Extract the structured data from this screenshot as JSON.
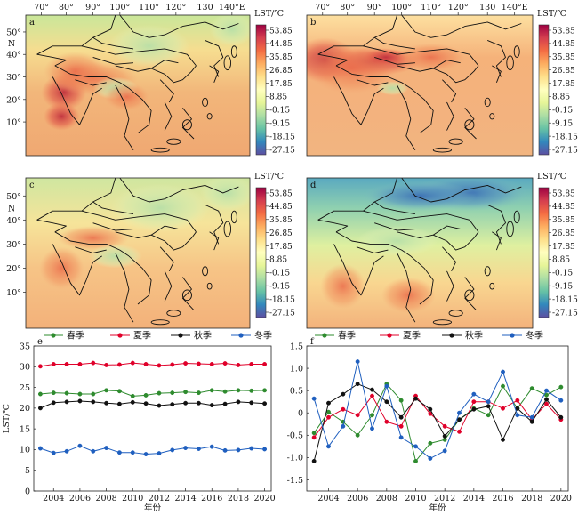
{
  "maps": {
    "top_lon_labels": [
      "70°",
      "80°",
      "90°",
      "100°",
      "110°",
      "120°",
      "130",
      "140°E"
    ],
    "lat_labels": [
      "50°",
      "40°",
      "30°",
      "20°",
      "10°"
    ],
    "lat_n_label": "N",
    "colorbar_title": "LST/℃",
    "colorbar_ticks": [
      "53.85",
      "44.85",
      "35.85",
      "26.85",
      "17.85",
      "8.85",
      "-0.15",
      "-9.15",
      "-18.15",
      "-27.15"
    ],
    "colorbar_colors": [
      "#9e0142",
      "#d53e4f",
      "#f46d43",
      "#fdae61",
      "#fee08b",
      "#ffffbf",
      "#e6f598",
      "#abdda4",
      "#66c2a5",
      "#3288bd",
      "#5e4fa2"
    ],
    "panels": [
      {
        "letter": "a",
        "season": "spring"
      },
      {
        "letter": "b",
        "season": "summer"
      },
      {
        "letter": "c",
        "season": "autumn"
      },
      {
        "letter": "d",
        "season": "winter"
      }
    ]
  },
  "chart_data": [
    {
      "type": "line",
      "panel_label": "e",
      "xlabel": "年份",
      "ylabel": "LST/℃",
      "xlim": [
        2002.5,
        2020.5
      ],
      "ylim": [
        0,
        35
      ],
      "xticks": [
        2004,
        2006,
        2008,
        2010,
        2012,
        2014,
        2016,
        2018,
        2020
      ],
      "yticks": [
        0,
        5,
        10,
        15,
        20,
        25,
        30,
        35
      ],
      "x": [
        2003,
        2004,
        2005,
        2006,
        2007,
        2008,
        2009,
        2010,
        2011,
        2012,
        2013,
        2014,
        2015,
        2016,
        2017,
        2018,
        2019,
        2020
      ],
      "legend_position": "top",
      "series": [
        {
          "name": "春季",
          "color": "#2e8b2e",
          "values": [
            23.4,
            23.7,
            23.6,
            23.4,
            23.4,
            24.3,
            24.1,
            22.9,
            23.1,
            23.6,
            23.7,
            23.9,
            23.7,
            24.3,
            24.0,
            24.3,
            24.2,
            24.3
          ]
        },
        {
          "name": "夏季",
          "color": "#e0002a",
          "values": [
            30.1,
            30.6,
            30.6,
            30.6,
            30.9,
            30.4,
            30.5,
            30.9,
            30.6,
            30.3,
            30.5,
            30.8,
            30.7,
            30.6,
            30.8,
            30.4,
            30.6,
            30.6
          ]
        },
        {
          "name": "秋季",
          "color": "#111111",
          "values": [
            20.0,
            21.3,
            21.5,
            21.7,
            21.5,
            21.2,
            21.0,
            21.4,
            21.1,
            20.6,
            20.9,
            21.2,
            21.2,
            20.7,
            21.0,
            21.5,
            21.3,
            21.1
          ]
        },
        {
          "name": "冬季",
          "color": "#1f5fbf",
          "values": [
            10.3,
            9.2,
            9.6,
            10.9,
            9.6,
            10.4,
            9.3,
            9.3,
            8.9,
            9.1,
            9.9,
            10.4,
            10.2,
            10.7,
            9.8,
            9.9,
            10.3,
            10.1
          ]
        }
      ]
    },
    {
      "type": "line",
      "panel_label": "f",
      "xlabel": "年份",
      "ylabel": "",
      "xlim": [
        2002.5,
        2020.5
      ],
      "ylim": [
        -1.75,
        1.5
      ],
      "xticks": [
        2004,
        2006,
        2008,
        2010,
        2012,
        2014,
        2016,
        2018,
        2020
      ],
      "yticks": [
        -1.5,
        -1.0,
        -0.5,
        0,
        0.5,
        1.0,
        1.5
      ],
      "ytick_labels": [
        "-1.5",
        "-1.0",
        "-0.5",
        "0",
        "0.5",
        "1.0",
        "1.5"
      ],
      "x": [
        2003,
        2004,
        2005,
        2006,
        2007,
        2008,
        2009,
        2010,
        2011,
        2012,
        2013,
        2014,
        2015,
        2016,
        2017,
        2018,
        2019,
        2020
      ],
      "legend_position": "top",
      "series": [
        {
          "name": "春季",
          "color": "#2e8b2e",
          "values": [
            -0.45,
            0.02,
            -0.2,
            -0.5,
            -0.05,
            0.65,
            0.28,
            -1.08,
            -0.68,
            -0.6,
            -0.15,
            0.1,
            -0.05,
            0.6,
            0.1,
            0.55,
            0.4,
            0.58
          ]
        },
        {
          "name": "夏季",
          "color": "#e0002a",
          "values": [
            -0.55,
            -0.1,
            0.08,
            -0.05,
            0.38,
            -0.2,
            -0.3,
            0.38,
            -0.02,
            -0.3,
            -0.42,
            0.25,
            0.25,
            0.1,
            0.28,
            -0.15,
            0.2,
            -0.15
          ]
        },
        {
          "name": "秋季",
          "color": "#111111",
          "values": [
            -1.08,
            0.22,
            0.42,
            0.65,
            0.52,
            0.25,
            -0.1,
            0.32,
            0.08,
            -0.52,
            -0.15,
            0.08,
            0.15,
            -0.6,
            0.1,
            -0.2,
            0.3,
            -0.1
          ]
        },
        {
          "name": "冬季",
          "color": "#1f5fbf",
          "values": [
            0.32,
            -0.75,
            -0.3,
            1.15,
            -0.35,
            0.6,
            -0.55,
            -0.75,
            -1.02,
            -0.85,
            0.0,
            0.42,
            0.25,
            0.92,
            -0.05,
            -0.1,
            0.5,
            0.28
          ]
        }
      ]
    }
  ]
}
